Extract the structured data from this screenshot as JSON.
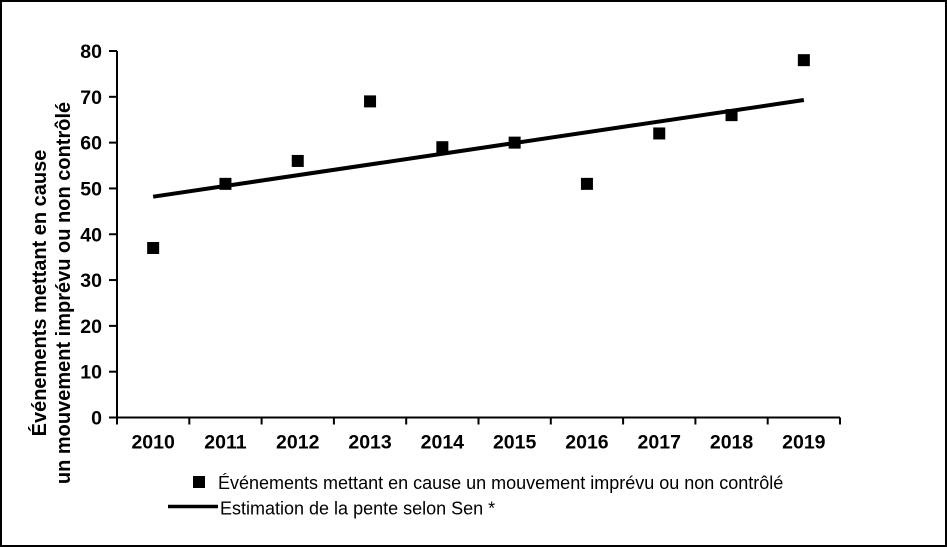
{
  "figure": {
    "background": "#ffffff",
    "border_color": "#000000",
    "series_color": "#000000"
  },
  "chart_data": {
    "type": "scatter",
    "title": "",
    "x": [
      2010,
      2011,
      2012,
      2013,
      2014,
      2015,
      2016,
      2017,
      2018,
      2019
    ],
    "series": [
      {
        "name": "Événements mettant en cause un mouvement imprévu ou non contrôlé",
        "type": "scatter",
        "marker": "square",
        "color": "#000000",
        "values": [
          37,
          51,
          56,
          69,
          59,
          60,
          51,
          62,
          66,
          78
        ]
      },
      {
        "name": "Estimation de la pente selon Sen *",
        "type": "line",
        "color": "#000000",
        "x": [
          2010,
          2019
        ],
        "values": [
          48.2,
          69.3
        ]
      }
    ],
    "xlabel": "",
    "ylabel_lines": [
      "Événements mettant en cause",
      "un mouvement imprévu ou non contrôlé"
    ],
    "ylim": [
      0,
      80
    ],
    "yticks": [
      0,
      10,
      20,
      30,
      40,
      50,
      60,
      70,
      80
    ],
    "grid": false,
    "legend_position": "bottom"
  },
  "legend": {
    "items": [
      {
        "marker": "square-icon",
        "label": "Événements mettant en cause un mouvement imprévu ou non contrôlé"
      },
      {
        "marker": "line-icon",
        "label": "Estimation de la pente selon Sen *"
      }
    ]
  }
}
